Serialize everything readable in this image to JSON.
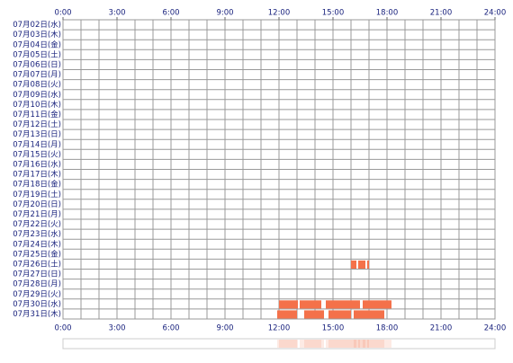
{
  "chart_data": {
    "type": "timeline",
    "categories": [
      "07月02日(水)",
      "07月03日(木)",
      "07月04日(金)",
      "07月05日(土)",
      "07月06日(日)",
      "07月07日(月)",
      "07月08日(火)",
      "07月09日(水)",
      "07月10日(木)",
      "07月11日(金)",
      "07月12日(土)",
      "07月13日(日)",
      "07月14日(月)",
      "07月15日(火)",
      "07月16日(水)",
      "07月17日(木)",
      "07月18日(金)",
      "07月19日(土)",
      "07月20日(日)",
      "07月21日(月)",
      "07月22日(火)",
      "07月23日(水)",
      "07月24日(木)",
      "07月25日(金)",
      "07月26日(土)",
      "07月27日(日)",
      "07月28日(月)",
      "07月29日(火)",
      "07月30日(水)",
      "07月31日(木)"
    ],
    "segments": [
      [],
      [],
      [],
      [],
      [],
      [],
      [],
      [],
      [],
      [],
      [],
      [],
      [],
      [],
      [],
      [],
      [],
      [],
      [],
      [],
      [],
      [],
      [],
      [],
      [
        [
          16.0,
          16.3
        ],
        [
          16.4,
          16.8
        ],
        [
          16.9,
          17.0
        ]
      ],
      [],
      [],
      [],
      [
        [
          12.0,
          13.05
        ],
        [
          13.15,
          14.35
        ],
        [
          14.6,
          16.5
        ],
        [
          16.65,
          18.25
        ]
      ],
      [
        [
          11.9,
          13.0
        ],
        [
          13.4,
          14.5
        ],
        [
          14.75,
          16.0
        ],
        [
          16.15,
          17.85
        ]
      ]
    ],
    "color": "#f4714a",
    "xlim": [
      0,
      24
    ],
    "xticks": [
      {
        "value": 0,
        "label": "0:00"
      },
      {
        "value": 3,
        "label": "3:00"
      },
      {
        "value": 6,
        "label": "6:00"
      },
      {
        "value": 9,
        "label": "9:00"
      },
      {
        "value": 12,
        "label": "12:00"
      },
      {
        "value": 15,
        "label": "15:00"
      },
      {
        "value": 18,
        "label": "18:00"
      },
      {
        "value": 21,
        "label": "21:00"
      },
      {
        "value": 24,
        "label": "24:00"
      }
    ],
    "grid_step": 1
  }
}
